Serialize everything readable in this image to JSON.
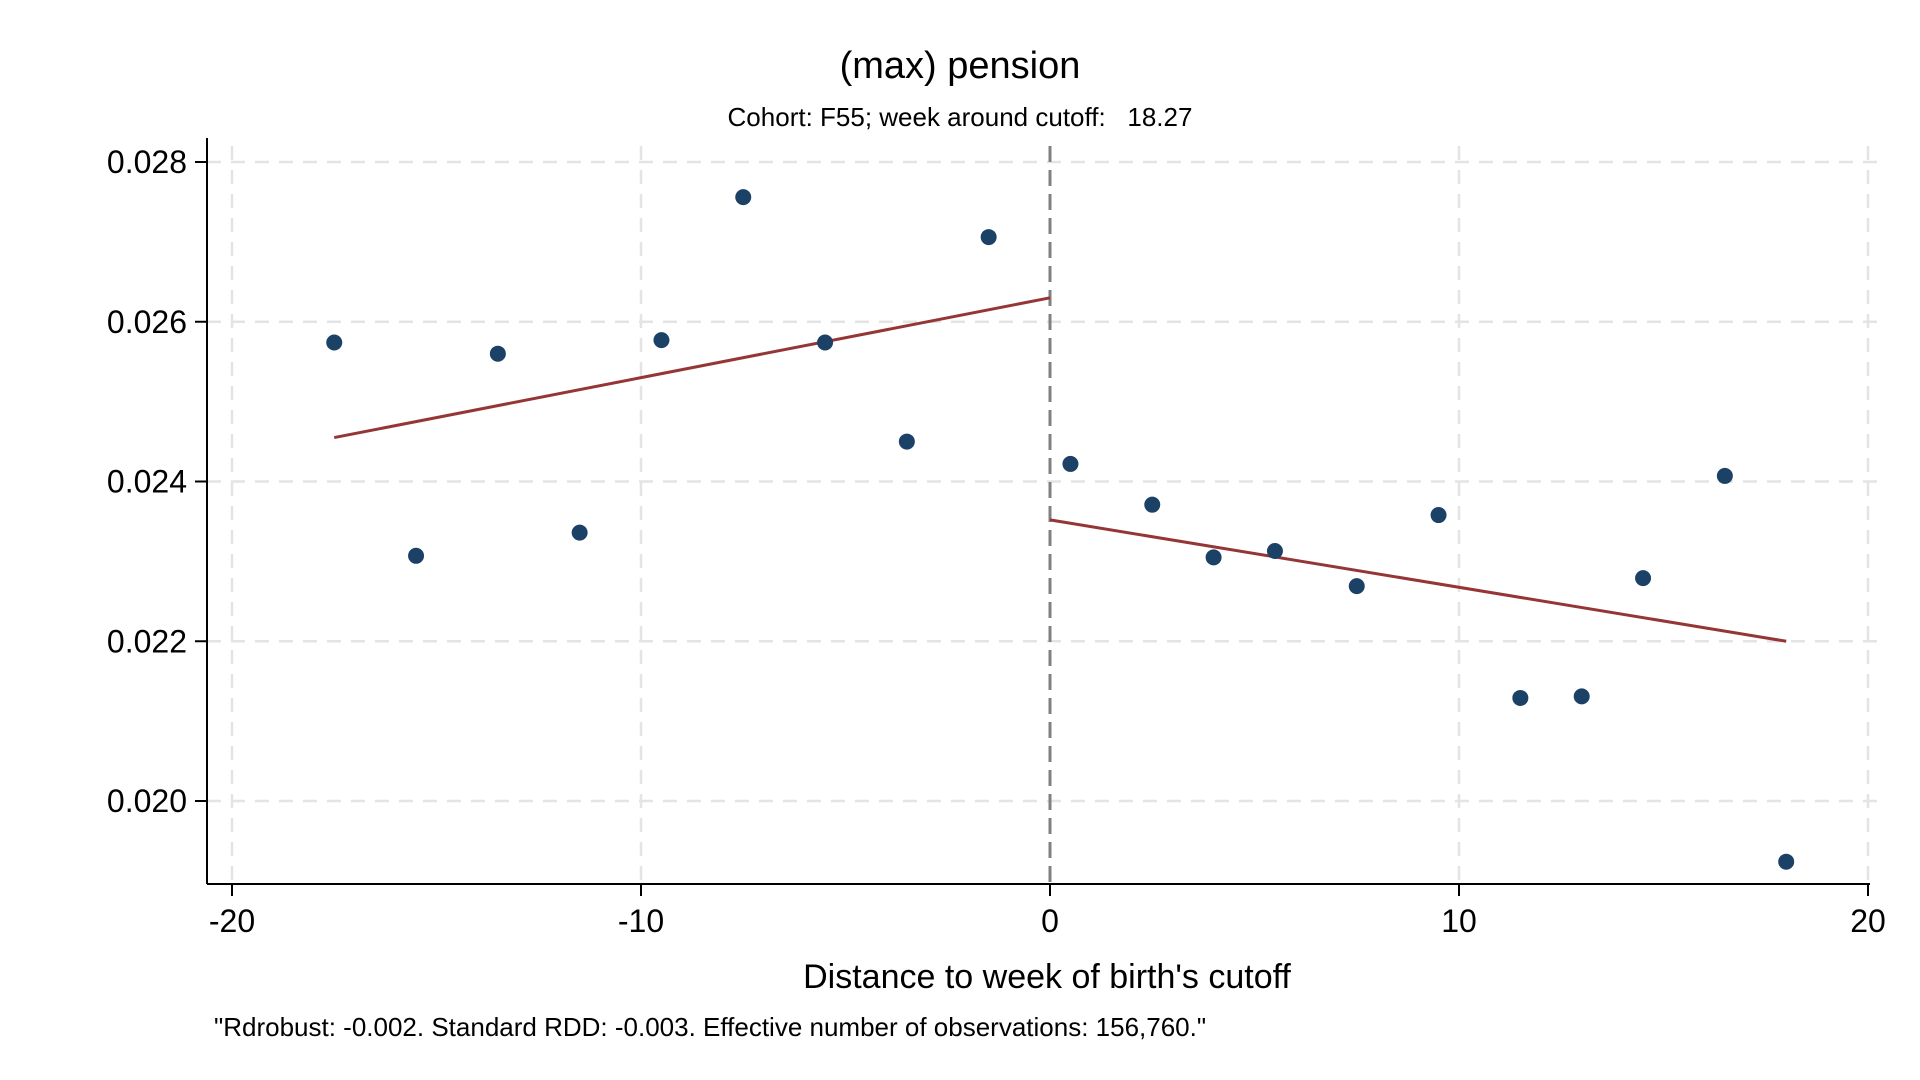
{
  "chart_data": {
    "type": "scatter",
    "title": "(max) pension",
    "subtitle": "Cohort: F55; week around cutoff:   18.27",
    "xlabel": "Distance to week of birth's cutoff",
    "ylabel": "",
    "note": "\"Rdrobust: -0.002. Standard RDD: -0.003. Effective number of observations: 156,760.\"",
    "xlim": [
      -20,
      20
    ],
    "ylim": [
      0.0192,
      0.0283
    ],
    "xticks": [
      -20,
      -10,
      0,
      10,
      20
    ],
    "yticks": [
      0.02,
      0.022,
      0.024,
      0.026,
      0.028
    ],
    "xtick_labels": [
      "-20",
      "-10",
      "0",
      "10",
      "20"
    ],
    "ytick_labels": [
      "0.020",
      "0.022",
      "0.024",
      "0.026",
      "0.028"
    ],
    "grid": true,
    "cutoff": 0,
    "points": [
      {
        "x": -17.5,
        "y": 0.02574
      },
      {
        "x": -15.5,
        "y": 0.02307
      },
      {
        "x": -13.5,
        "y": 0.0256
      },
      {
        "x": -11.5,
        "y": 0.02336
      },
      {
        "x": -9.5,
        "y": 0.02577
      },
      {
        "x": -7.5,
        "y": 0.02756
      },
      {
        "x": -5.5,
        "y": 0.02574
      },
      {
        "x": -3.5,
        "y": 0.0245
      },
      {
        "x": -1.5,
        "y": 0.02706
      },
      {
        "x": 0.5,
        "y": 0.02422
      },
      {
        "x": 2.5,
        "y": 0.02371
      },
      {
        "x": 4.0,
        "y": 0.02305
      },
      {
        "x": 5.5,
        "y": 0.02313
      },
      {
        "x": 7.5,
        "y": 0.02269
      },
      {
        "x": 9.5,
        "y": 0.02358
      },
      {
        "x": 11.5,
        "y": 0.02129
      },
      {
        "x": 13.0,
        "y": 0.02131
      },
      {
        "x": 14.5,
        "y": 0.02279
      },
      {
        "x": 16.5,
        "y": 0.02407
      },
      {
        "x": 18.0,
        "y": 0.01924
      }
    ],
    "fit_lines": [
      {
        "x": [
          -17.5,
          0
        ],
        "y": [
          0.02455,
          0.0263
        ]
      },
      {
        "x": [
          0,
          18.0
        ],
        "y": [
          0.02352,
          0.022
        ]
      }
    ],
    "colors": {
      "points": "#1b4266",
      "fit": "#953535",
      "cutoff": "#808080",
      "grid": "#e4e4e4",
      "axis": "#000000"
    }
  }
}
